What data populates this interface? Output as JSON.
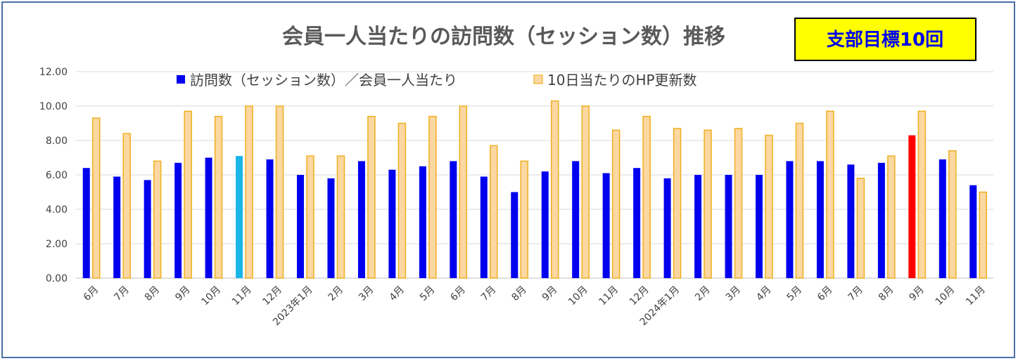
{
  "chart_data": {
    "type": "bar",
    "title": "会員一人当たりの訪問数（セッション数）推移",
    "annotation": "支部目標10回",
    "ylim": [
      0,
      12
    ],
    "yticks": [
      "0.00",
      "2.00",
      "4.00",
      "6.00",
      "8.00",
      "10.00",
      "12.00"
    ],
    "grid": true,
    "legend_position": "top",
    "categories": [
      "6月",
      "7月",
      "8月",
      "9月",
      "10月",
      "11月",
      "12月",
      "2023年1月",
      "2月",
      "3月",
      "4月",
      "5月",
      "6月",
      "7月",
      "8月",
      "9月",
      "10月",
      "11月",
      "12月",
      "2024年1月",
      "2月",
      "3月",
      "4月",
      "5月",
      "6月",
      "7月",
      "8月",
      "9月",
      "10月",
      "11月"
    ],
    "series": [
      {
        "name": "訪問数（セッション数）／会員一人当たり",
        "color": "#0000ee",
        "values": [
          6.4,
          5.9,
          5.7,
          6.7,
          7.0,
          7.1,
          6.9,
          6.0,
          5.8,
          6.8,
          6.3,
          6.5,
          6.8,
          5.9,
          5.0,
          6.2,
          6.8,
          6.1,
          6.4,
          5.8,
          6.0,
          6.0,
          6.0,
          6.8,
          6.8,
          6.6,
          6.7,
          8.3,
          6.9,
          5.4
        ]
      },
      {
        "name": "10日当たりのHP更新数",
        "color": "#fbd7a1",
        "edge_color": "#f0b020",
        "values": [
          9.3,
          8.4,
          6.8,
          9.7,
          9.4,
          10.0,
          10.0,
          7.1,
          7.1,
          9.4,
          9.0,
          9.4,
          10.0,
          7.7,
          6.8,
          10.3,
          10.0,
          8.6,
          9.4,
          8.7,
          8.6,
          8.7,
          8.3,
          9.0,
          9.7,
          5.8,
          7.1,
          9.7,
          7.4,
          5.0
        ]
      }
    ],
    "highlights": [
      {
        "series": 0,
        "index": 5,
        "color": "#1ab6e8"
      },
      {
        "series": 0,
        "index": 27,
        "color": "#ff0000"
      }
    ],
    "gridline_color": "#d9d9d9",
    "axis_color": "#bfbfbf",
    "target_box_fill": "#ffff00"
  }
}
